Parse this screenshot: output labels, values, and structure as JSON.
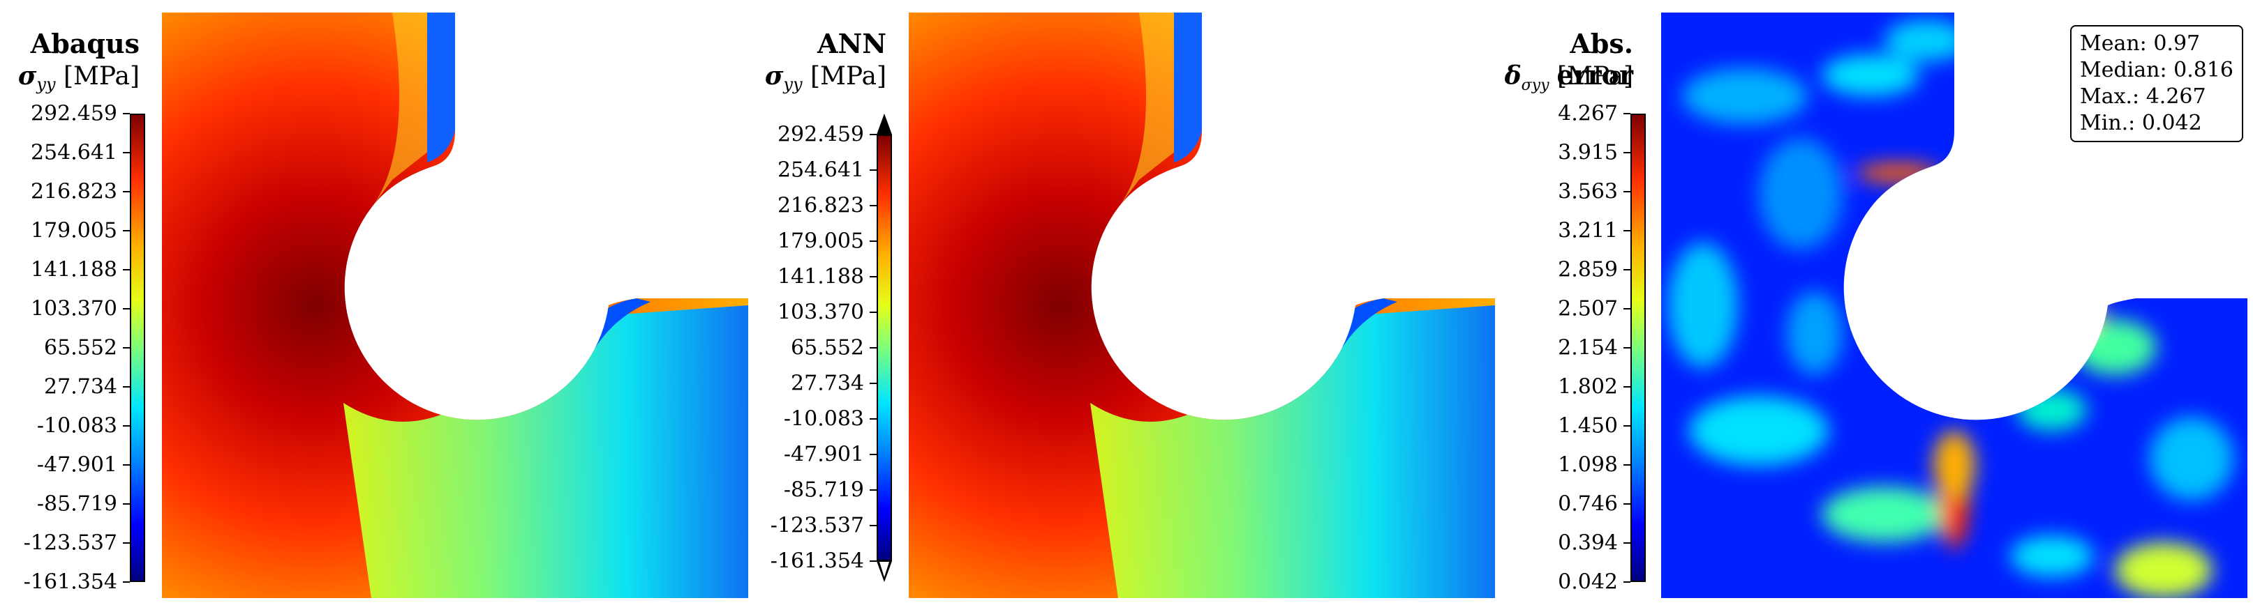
{
  "panels": [
    {
      "title": "Abaqus",
      "quantity": "σ",
      "quantity_sub": "yy",
      "unit": "[MPa]",
      "colorbar_ticks": [
        "292.459",
        "254.641",
        "216.823",
        "179.005",
        "141.188",
        "103.370",
        "65.552",
        "27.734",
        "-10.083",
        "-47.901",
        "-85.719",
        "-123.537",
        "-161.354"
      ],
      "colorbar_style": "rect"
    },
    {
      "title": "ANN",
      "quantity": "σ",
      "quantity_sub": "yy",
      "unit": "[MPa]",
      "colorbar_ticks": [
        "292.459",
        "254.641",
        "216.823",
        "179.005",
        "141.188",
        "103.370",
        "65.552",
        "27.734",
        "-10.083",
        "-47.901",
        "-85.719",
        "-123.537",
        "-161.354"
      ],
      "colorbar_style": "arrows"
    },
    {
      "title": "Abs. error",
      "quantity": "δ",
      "quantity_sub": "σyy",
      "unit": "[MPa]",
      "colorbar_ticks": [
        "4.267",
        "3.915",
        "3.563",
        "3.211",
        "2.859",
        "2.507",
        "2.154",
        "1.802",
        "1.450",
        "1.098",
        "0.746",
        "0.394",
        "0.042"
      ],
      "colorbar_style": "rect"
    }
  ],
  "stats": {
    "mean": "Mean: 0.97",
    "median": "Median: 0.816",
    "max": "Max.: 4.267",
    "min": "Min.: 0.042"
  },
  "colors": {
    "high": "#7f0000",
    "low": "#00007f",
    "mid": "#7dff7a"
  }
}
